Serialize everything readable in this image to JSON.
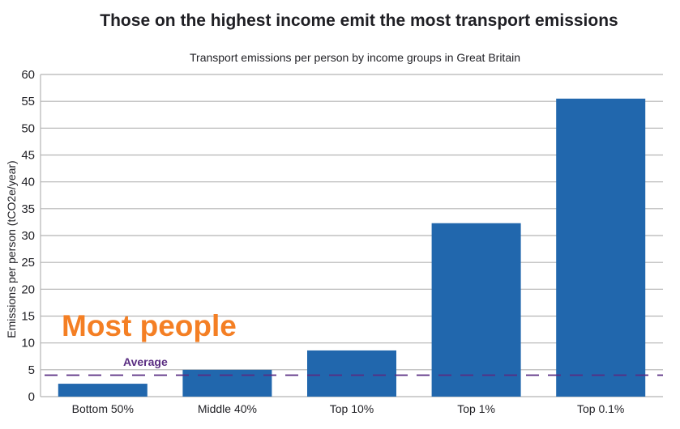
{
  "chart_data": {
    "type": "bar",
    "title": "Those on the highest income emit the most transport emissions",
    "subtitle": "Transport emissions per person by income groups in Great Britain",
    "xlabel": "",
    "ylabel": "Emissions per person (tCO2e/year)",
    "categories": [
      "Bottom 50%",
      "Middle 40%",
      "Top 10%",
      "Top 1%",
      "Top 0.1%"
    ],
    "values": [
      2.4,
      5.0,
      8.6,
      32.3,
      55.5
    ],
    "ylim": [
      0,
      60
    ],
    "yticks": [
      0,
      5,
      10,
      15,
      20,
      25,
      30,
      35,
      40,
      45,
      50,
      55,
      60
    ],
    "grid": true,
    "average": {
      "label": "Average",
      "value": 4.0
    },
    "annotation": "Most people",
    "colors": {
      "bar": "#2167ad",
      "grid": "#b4b4b4",
      "average": "#5a2d82",
      "annotation": "#f47f24"
    }
  }
}
